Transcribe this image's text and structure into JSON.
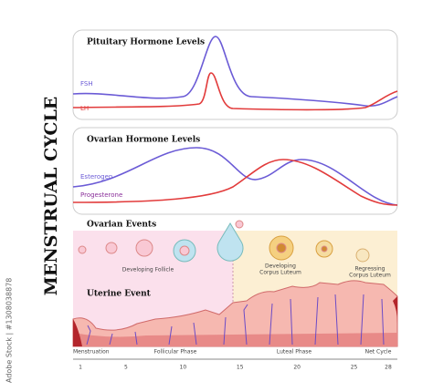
{
  "title": "MENSTRUAL CYCLE",
  "panels": [
    {
      "title": "Pituitary Hormone Levels",
      "labels": [
        "FSH",
        "LH"
      ]
    },
    {
      "title": "Ovarian Hormone Levels",
      "labels": [
        "Esterogen",
        "Progesterone"
      ]
    }
  ],
  "ovarian_events": {
    "title": "Ovarian Events",
    "stages": [
      [
        "Developing Follicle"
      ],
      [
        "Developing",
        "Corpus Luteum"
      ],
      [
        "Regressing",
        "Corpus Luteum"
      ]
    ]
  },
  "uterine_event": {
    "title": "Uterine Event"
  },
  "phases": [
    "Menstruation",
    "Follicular Phase",
    "Luteal Phase",
    "Net Cycle"
  ],
  "days": [
    1,
    5,
    10,
    15,
    20,
    25,
    28
  ],
  "watermark": "Adobe Stock | #1308038878"
}
